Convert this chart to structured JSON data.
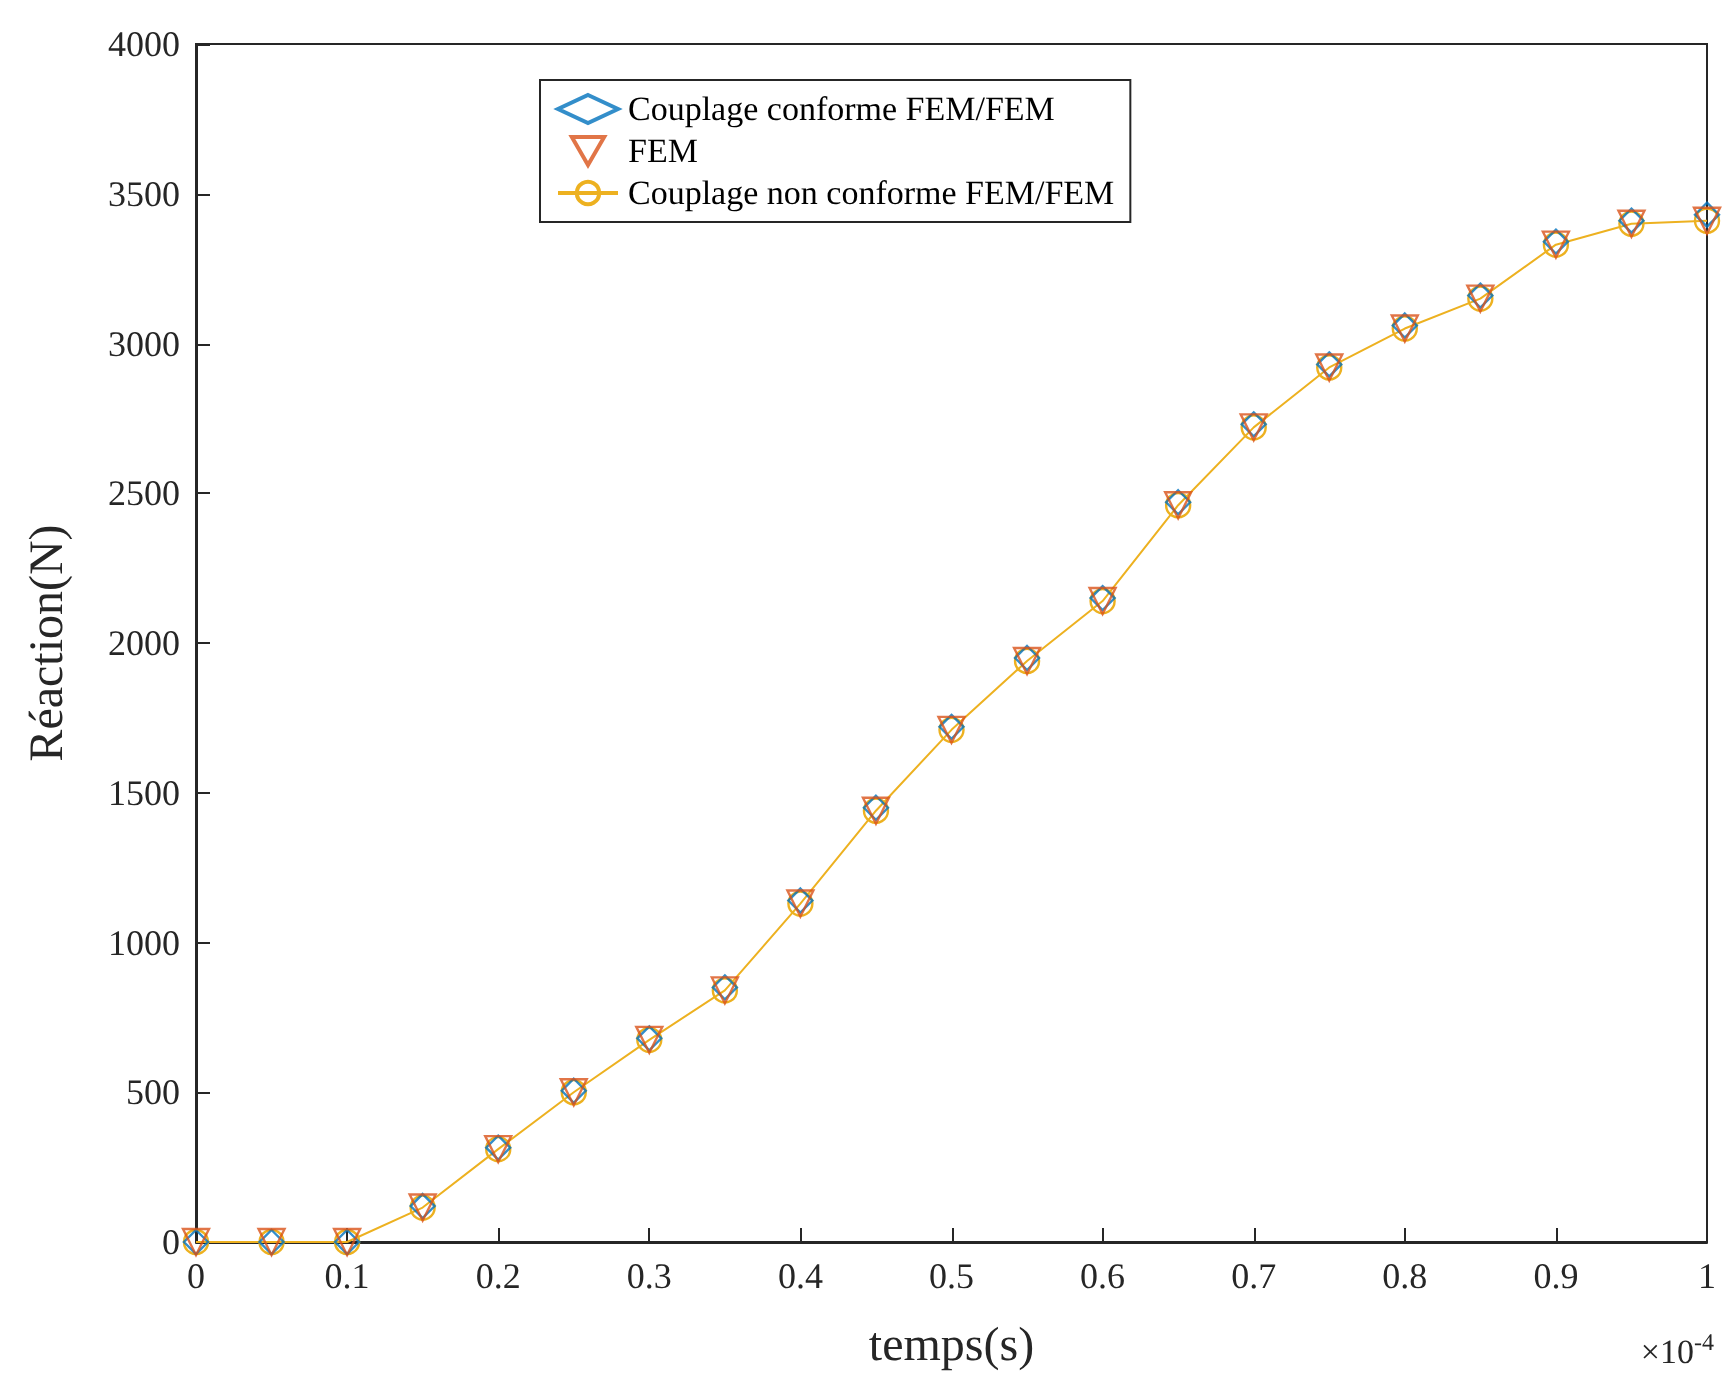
{
  "chart_data": {
    "type": "line",
    "xlabel": "temps(s)",
    "ylabel": "Réaction(N)",
    "x": [
      0,
      0.05,
      0.1,
      0.15,
      0.2,
      0.25,
      0.3,
      0.35,
      0.4,
      0.45,
      0.5,
      0.55,
      0.6,
      0.65,
      0.7,
      0.75,
      0.8,
      0.85,
      0.9,
      0.95,
      1
    ],
    "series": [
      {
        "name": "Couplage conforme FEM/FEM",
        "color": "#0072bd",
        "type": "scatter",
        "marker": "diamond",
        "values": [
          0,
          0,
          0,
          120,
          315,
          505,
          680,
          850,
          1140,
          1450,
          1720,
          1950,
          2150,
          2470,
          2730,
          2930,
          3060,
          3160,
          3340,
          3410,
          3430
        ]
      },
      {
        "name": "FEM",
        "color": "#d95319",
        "type": "scatter",
        "marker": "triangle",
        "values": [
          0,
          0,
          0,
          115,
          310,
          500,
          675,
          840,
          1130,
          1440,
          1710,
          1940,
          2140,
          2460,
          2720,
          2920,
          3050,
          3150,
          3330,
          3400,
          3410
        ]
      },
      {
        "name": "Couplage non conforme FEM/FEM",
        "color": "#edb120",
        "marker": "circle",
        "values": [
          0,
          0,
          0,
          115,
          310,
          500,
          675,
          840,
          1130,
          1440,
          1710,
          1940,
          2140,
          2460,
          2720,
          2920,
          3050,
          3150,
          3330,
          3400,
          3410
        ]
      }
    ],
    "xlim": [
      0,
      1
    ],
    "xticks": [
      0,
      0.1,
      0.2,
      0.3,
      0.4,
      0.5,
      0.6,
      0.7,
      0.8,
      0.9,
      1
    ],
    "ylim": [
      0,
      4000
    ],
    "yticks": [
      0,
      500,
      1000,
      1500,
      2000,
      2500,
      3000,
      3500,
      4000
    ],
    "annotations": [
      "×10$^{-4}$"
    ],
    "legend": "top",
    "grid": false
  }
}
